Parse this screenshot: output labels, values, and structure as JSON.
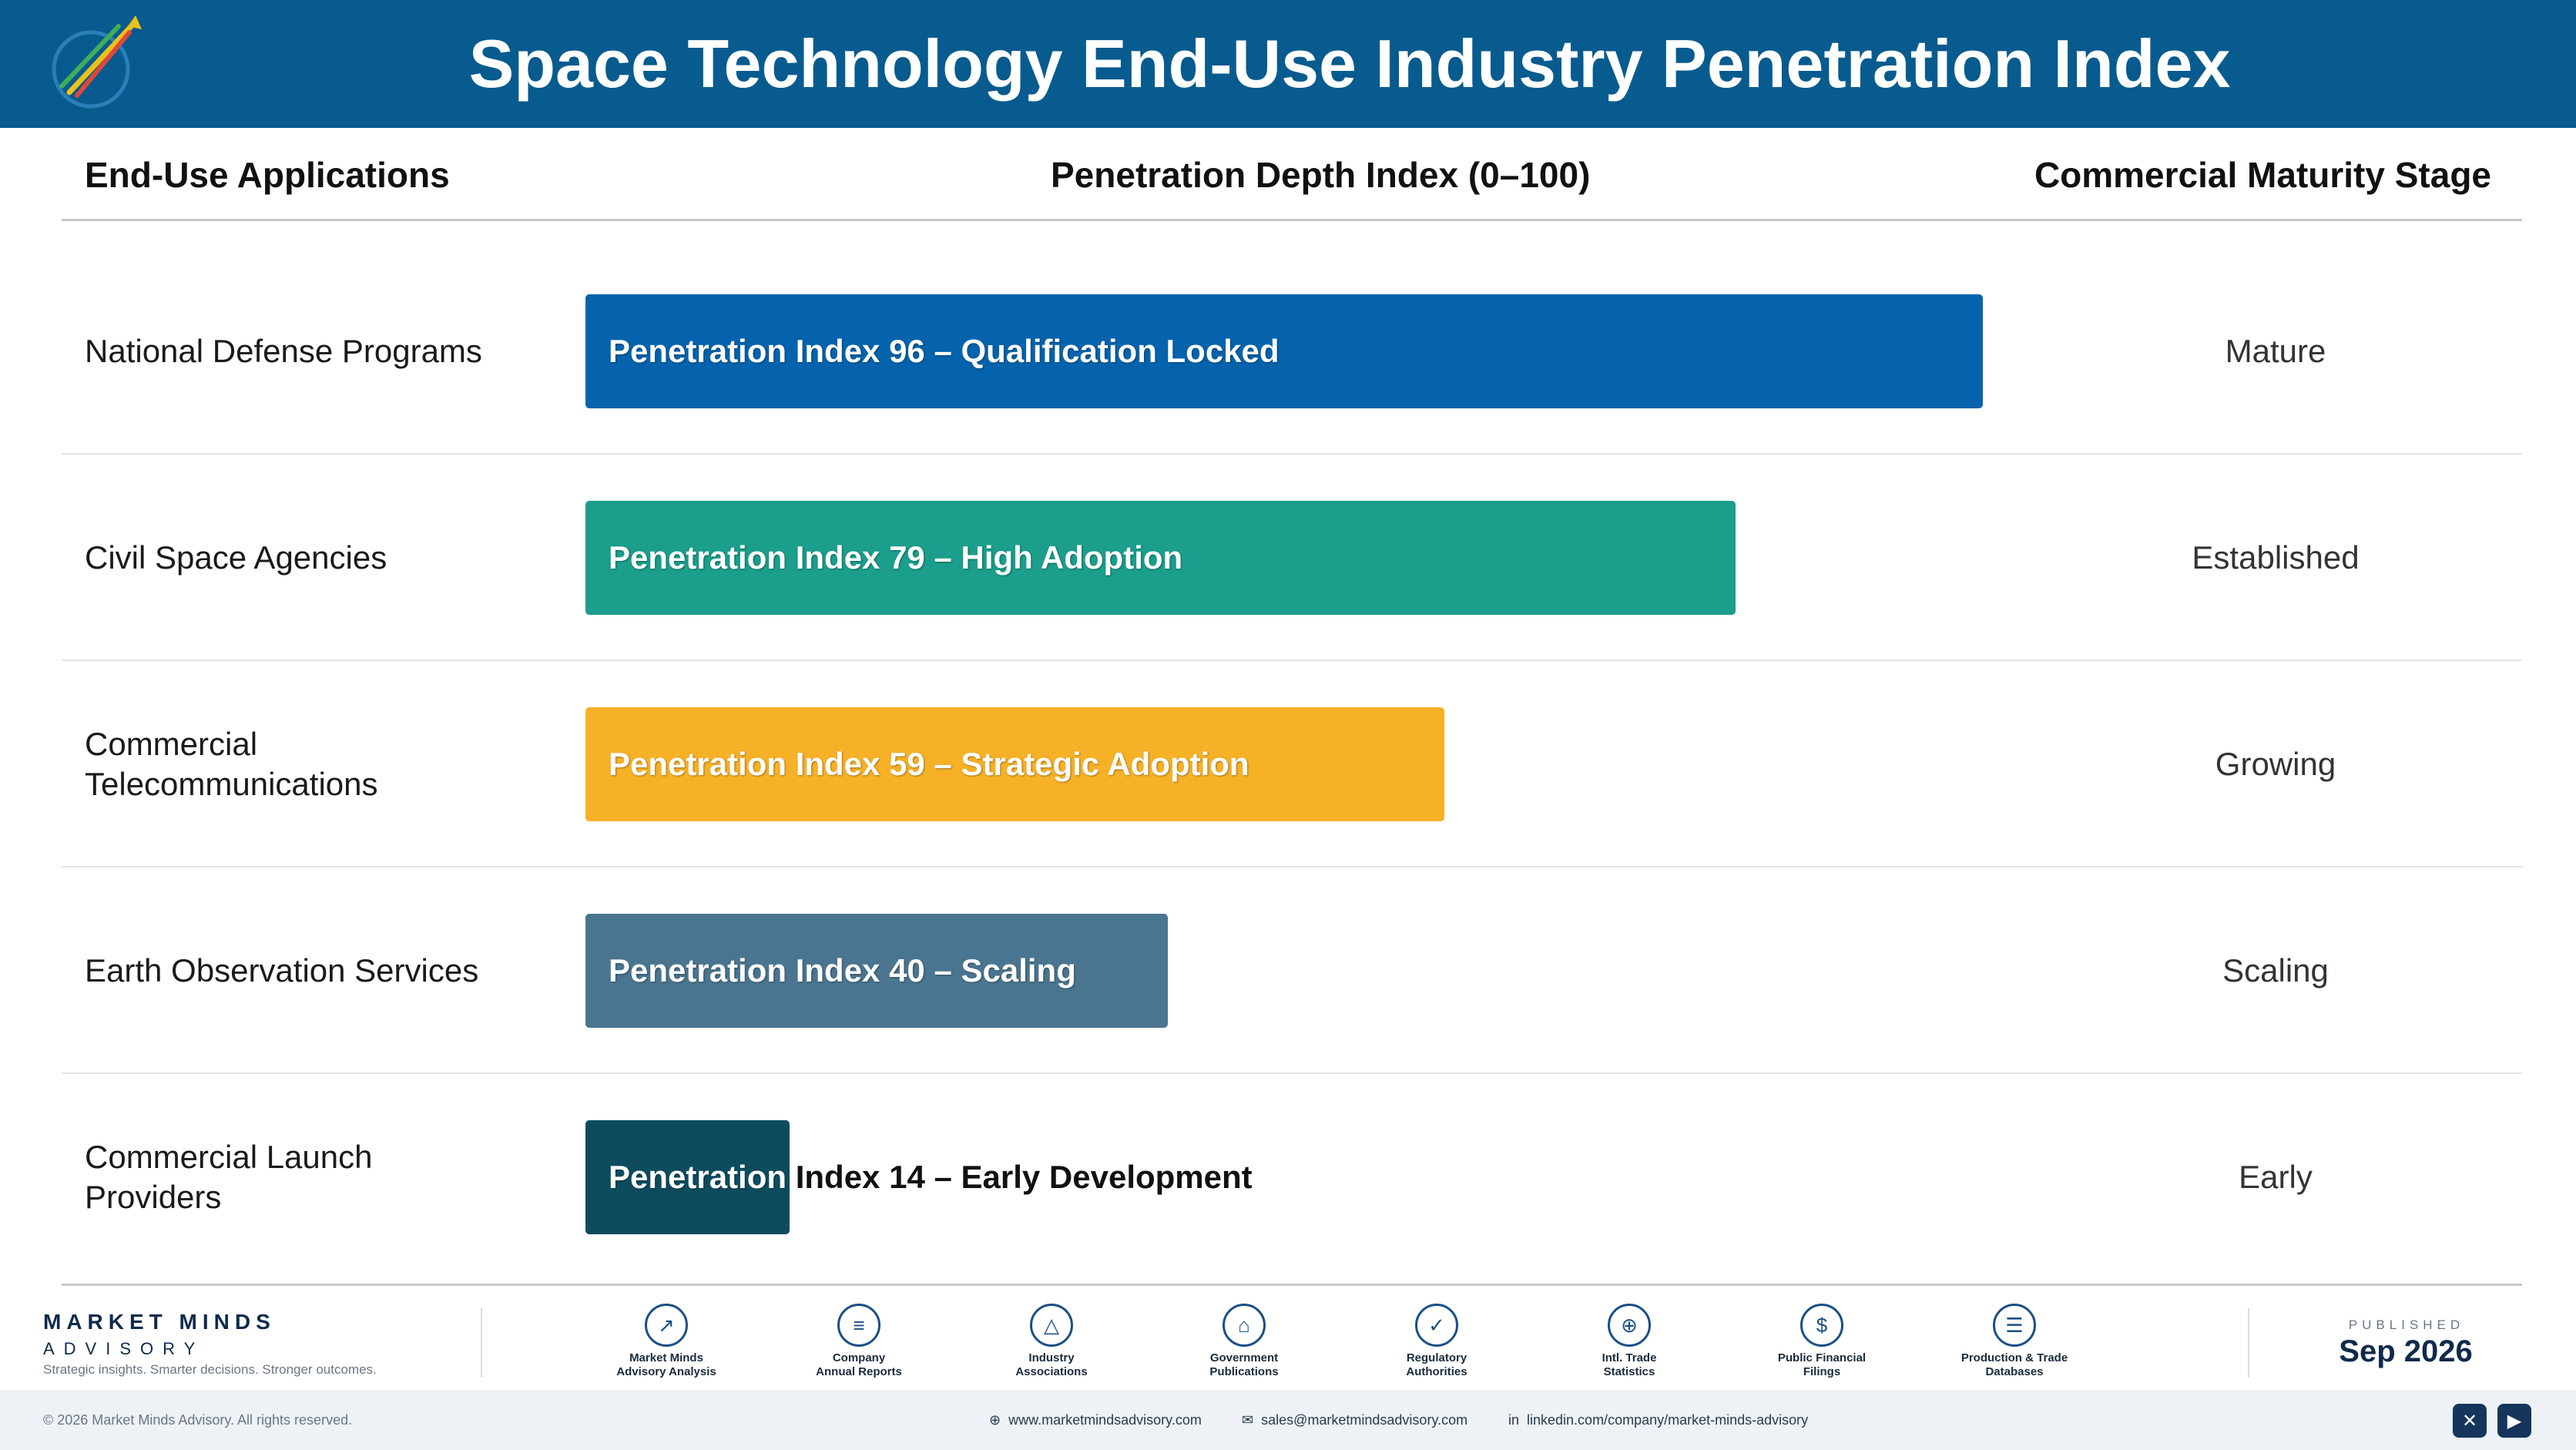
{
  "header": {
    "title": "Space Technology End-Use Industry Penetration Index"
  },
  "columns": {
    "applications": "End-Use Applications",
    "depth": "Penetration Depth Index (0–100)",
    "stage": "Commercial Maturity Stage"
  },
  "colors": {
    "header_bg": "#075b8f",
    "defense": "#0563ad",
    "civil": "#1b9e8b",
    "telecom": "#f6b127",
    "earth_obs": "#4a7590",
    "launch": "#0d4c5e"
  },
  "chart_data": {
    "type": "bar",
    "orientation": "horizontal",
    "title": "Space Technology End-Use Industry Penetration Index",
    "xlabel": "Penetration Depth Index (0–100)",
    "xlim": [
      0,
      100
    ],
    "categories": [
      "National Defense Programs",
      "Civil Space Agencies",
      "Commercial Telecommunications",
      "Earth Observation Services",
      "Commercial Launch Providers"
    ],
    "values": [
      96,
      79,
      59,
      40,
      14
    ],
    "labels": [
      "Penetration Index 96 – Qualification Locked",
      "Penetration Index 79 – High Adoption",
      "Penetration Index 59 – Strategic Adoption",
      "Penetration Index 40 – Scaling",
      "Penetration Index 14 – Early Development"
    ],
    "stages": [
      "Mature",
      "Established",
      "Growing",
      "Scaling",
      "Early"
    ],
    "bar_colors": [
      "#0563ad",
      "#1b9e8b",
      "#f6b127",
      "#4a7590",
      "#0d4c5e"
    ]
  },
  "rows": [
    {
      "app": "National Defense Programs",
      "stage": "Mature",
      "value": 96,
      "label": "Penetration Index 96 – Qualification Locked",
      "color": "#0563ad"
    },
    {
      "app": "Civil Space Agencies",
      "stage": "Established",
      "value": 79,
      "label": "Penetration Index 79 – High Adoption",
      "color": "#1b9e8b"
    },
    {
      "app": "Commercial Telecommunications",
      "stage": "Growing",
      "value": 59,
      "label": "Penetration Index 59 – Strategic Adoption",
      "color": "#f6b127"
    },
    {
      "app": "Earth Observation Services",
      "stage": "Scaling",
      "value": 40,
      "label": "Penetration Index 40 – Scaling",
      "color": "#4a7590"
    },
    {
      "app": "Commercial Launch Providers",
      "stage": "Early",
      "value": 14,
      "label_inside": "Penetration",
      "label_outside": " Index 14 – Early Development",
      "color": "#0d4c5e"
    }
  ],
  "footer": {
    "brand_name": "MARKET MINDS",
    "brand_sub": "ADVISORY",
    "brand_tag": "Strategic insights. Smarter decisions. Stronger outcomes.",
    "sources": [
      {
        "icon": "trend-chart-icon",
        "glyph": "↗",
        "label1": "Market Minds",
        "label2": "Advisory Analysis"
      },
      {
        "icon": "document-icon",
        "glyph": "≡",
        "label1": "Company",
        "label2": "Annual Reports"
      },
      {
        "icon": "network-icon",
        "glyph": "△",
        "label1": "Industry",
        "label2": "Associations"
      },
      {
        "icon": "government-building-icon",
        "glyph": "⌂",
        "label1": "Government",
        "label2": "Publications"
      },
      {
        "icon": "shield-check-icon",
        "glyph": "✓",
        "label1": "Regulatory",
        "label2": "Authorities"
      },
      {
        "icon": "globe-icon",
        "glyph": "⊕",
        "label1": "Intl. Trade",
        "label2": "Statistics"
      },
      {
        "icon": "dollar-coin-icon",
        "glyph": "$",
        "label1": "Public Financial",
        "label2": "Filings"
      },
      {
        "icon": "database-icon",
        "glyph": "☰",
        "label1": "Production & Trade",
        "label2": "Databases"
      }
    ],
    "published_label": "PUBLISHED",
    "published_date": "Sep 2026",
    "copyright": "© 2026 Market Minds Advisory. All rights reserved.",
    "website": "www.marketmindsadvisory.com",
    "email": "sales@marketmindsadvisory.com",
    "linkedin": "linkedin.com/company/market-minds-advisory"
  }
}
